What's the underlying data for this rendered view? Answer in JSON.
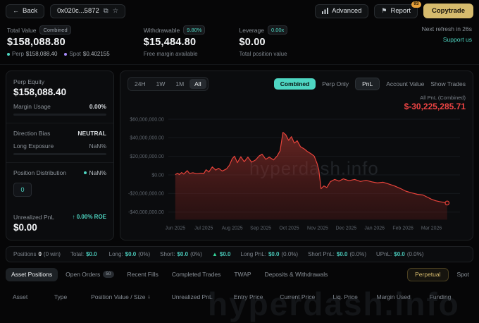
{
  "topbar": {
    "back_label": "Back",
    "address": "0x020c...5872",
    "advanced_label": "Advanced",
    "report_label": "Report",
    "report_badge": "93",
    "copytrade_label": "Copytrade"
  },
  "icons": {
    "back": "←",
    "copy": "⧉",
    "star": "☆",
    "flag": "⚑",
    "sort_desc": "↓",
    "green_dot": "●"
  },
  "stats": {
    "total_value": {
      "label": "Total Value",
      "badge": "Combined",
      "value": "$158,088.80",
      "perp_label": "Perp",
      "perp_value": "$158,088.40",
      "spot_label": "Spot",
      "spot_value": "$0.402155"
    },
    "withdrawable": {
      "label": "Withdrawable",
      "badge": "9.80%",
      "value": "$15,484.80",
      "sub": "Free margin available"
    },
    "leverage": {
      "label": "Leverage",
      "badge": "0.00x",
      "value": "$0.00",
      "sub": "Total position value"
    },
    "refresh_text": "Next refresh in 26s",
    "support_link": "Support us"
  },
  "sidebar": {
    "perp_equity_label": "Perp Equity",
    "perp_equity_value": "$158,088.40",
    "margin_usage_label": "Margin Usage",
    "margin_usage_value": "0.00%",
    "direction_bias_label": "Direction Bias",
    "direction_bias_value": "NEUTRAL",
    "long_exposure_label": "Long Exposure",
    "long_exposure_value": "NaN%",
    "position_distribution_label": "Position Distribution",
    "position_distribution_value": "NaN%",
    "distribution_count": "0",
    "unrealized_pnl_label": "Unrealized PnL",
    "unrealized_pnl_roe": "↑ 0.00% ROE",
    "unrealized_pnl_value": "$0.00"
  },
  "chart_controls": {
    "ranges": [
      "24H",
      "1W",
      "1M",
      "All"
    ],
    "active_range": "All",
    "modes": [
      "Combined",
      "Perp Only"
    ],
    "views": [
      "PnL",
      "Account Value"
    ],
    "show_trades_label": "Show Trades",
    "pnl_label": "All PnL (Combined)",
    "pnl_value": "$-30,225,285.71"
  },
  "chart_data": {
    "type": "area",
    "title": "All PnL (Combined)",
    "final_value": "$-30,225,285.71",
    "x_ticks": [
      "Jun 2025",
      "Jul 2025",
      "Aug 2025",
      "Sep 2025",
      "Oct 2025",
      "Nov 2025",
      "Dec 2025",
      "Jan 2026",
      "Feb 2026",
      "Mar 2026"
    ],
    "y_ticks": [
      "$60,000,000.00",
      "$40,000,000.00",
      "$20,000,000.00",
      "$0.00",
      "-$20,000,000.00",
      "-$40,000,000.00"
    ],
    "y_tick_values_m": [
      60,
      40,
      20,
      0,
      -20,
      -40
    ],
    "xlim": [
      -0.25,
      10.0
    ],
    "ylim_m": [
      -48,
      63
    ],
    "grid": true,
    "legend": "none",
    "line_color": "#e8433b",
    "watermark": "hyperdash.info",
    "points_m": [
      [
        0,
        0.3
      ],
      [
        0.08,
        1.8
      ],
      [
        0.14,
        0.4
      ],
      [
        0.22,
        2.6
      ],
      [
        0.3,
        0.9
      ],
      [
        0.42,
        4.6
      ],
      [
        0.5,
        1.6
      ],
      [
        0.62,
        2.4
      ],
      [
        0.75,
        1.2
      ],
      [
        0.9,
        2.0
      ],
      [
        1.0,
        1.4
      ],
      [
        1.08,
        5.6
      ],
      [
        1.18,
        3.2
      ],
      [
        1.3,
        8.6
      ],
      [
        1.42,
        5.2
      ],
      [
        1.52,
        7.2
      ],
      [
        1.65,
        4.2
      ],
      [
        1.8,
        6.5
      ],
      [
        1.9,
        10.5
      ],
      [
        2.0,
        17.5
      ],
      [
        2.08,
        20.2
      ],
      [
        2.18,
        13.2
      ],
      [
        2.3,
        19.6
      ],
      [
        2.42,
        14.2
      ],
      [
        2.55,
        19.2
      ],
      [
        2.68,
        13.8
      ],
      [
        2.82,
        16.2
      ],
      [
        2.95,
        20.6
      ],
      [
        3.05,
        22.2
      ],
      [
        3.18,
        16.8
      ],
      [
        3.3,
        19.2
      ],
      [
        3.45,
        16.2
      ],
      [
        3.58,
        20.5
      ],
      [
        3.68,
        26.0
      ],
      [
        3.78,
        45.8
      ],
      [
        3.88,
        43.2
      ],
      [
        3.98,
        37.2
      ],
      [
        4.08,
        41.2
      ],
      [
        4.18,
        34.2
      ],
      [
        4.28,
        36.8
      ],
      [
        4.4,
        30.2
      ],
      [
        4.52,
        28.2
      ],
      [
        4.64,
        25.2
      ],
      [
        4.76,
        23.0
      ],
      [
        4.88,
        20.2
      ],
      [
        4.98,
        12.2
      ],
      [
        5.04,
        5.5
      ],
      [
        5.12,
        -14.8
      ],
      [
        5.22,
        -11.8
      ],
      [
        5.32,
        -13.6
      ],
      [
        5.45,
        -7.2
      ],
      [
        5.6,
        -4.8
      ],
      [
        5.75,
        -6.6
      ],
      [
        5.9,
        -4.2
      ],
      [
        6.1,
        -6.2
      ],
      [
        6.3,
        -4.8
      ],
      [
        6.5,
        -7.0
      ],
      [
        6.7,
        -5.8
      ],
      [
        6.9,
        -7.4
      ],
      [
        7.1,
        -8.6
      ],
      [
        7.3,
        -7.8
      ],
      [
        7.5,
        -9.8
      ],
      [
        7.7,
        -11.8
      ],
      [
        7.9,
        -14.5
      ],
      [
        8.1,
        -17.5
      ],
      [
        8.3,
        -19.2
      ],
      [
        8.5,
        -20.8
      ],
      [
        8.7,
        -21.6
      ],
      [
        8.85,
        -23.8
      ],
      [
        9.0,
        -26.2
      ],
      [
        9.15,
        -27.8
      ],
      [
        9.3,
        -28.8
      ],
      [
        9.45,
        -29.6
      ],
      [
        9.55,
        -30.2
      ]
    ]
  },
  "summary": {
    "items": [
      {
        "label": "Positions",
        "value": "0",
        "extra": "(0 win)"
      },
      {
        "label": "Total:",
        "value": "$0.0",
        "extra": ""
      },
      {
        "label": "Long:",
        "value": "$0.0",
        "extra": "(0%)"
      },
      {
        "label": "Short:",
        "value": "$0.0",
        "extra": "(0%)"
      },
      {
        "label": "▲",
        "value": "$0.0",
        "extra": ""
      },
      {
        "label": "Long PnL:",
        "value": "$0.0",
        "extra": "(0.0%)"
      },
      {
        "label": "Short PnL:",
        "value": "$0.0",
        "extra": "(0.0%)"
      },
      {
        "label": "UPnL:",
        "value": "$0.0",
        "extra": "(0.0%)"
      }
    ]
  },
  "tabs": {
    "left": [
      {
        "label": "Asset Positions"
      },
      {
        "label": "Open Orders",
        "badge": "50"
      },
      {
        "label": "Recent Fills"
      },
      {
        "label": "Completed Trades"
      },
      {
        "label": "TWAP"
      },
      {
        "label": "Deposits & Withdrawals"
      }
    ],
    "right": [
      {
        "label": "Perpetual"
      },
      {
        "label": "Spot"
      }
    ]
  },
  "table": {
    "headers": [
      "Asset",
      "Type",
      "Position Value / Size",
      "Unrealized PnL",
      "Entry Price",
      "Current Price",
      "Liq. Price",
      "Margin Used",
      "Funding"
    ],
    "sort_indicator": "↓"
  },
  "watermark": "hyperdash.info"
}
